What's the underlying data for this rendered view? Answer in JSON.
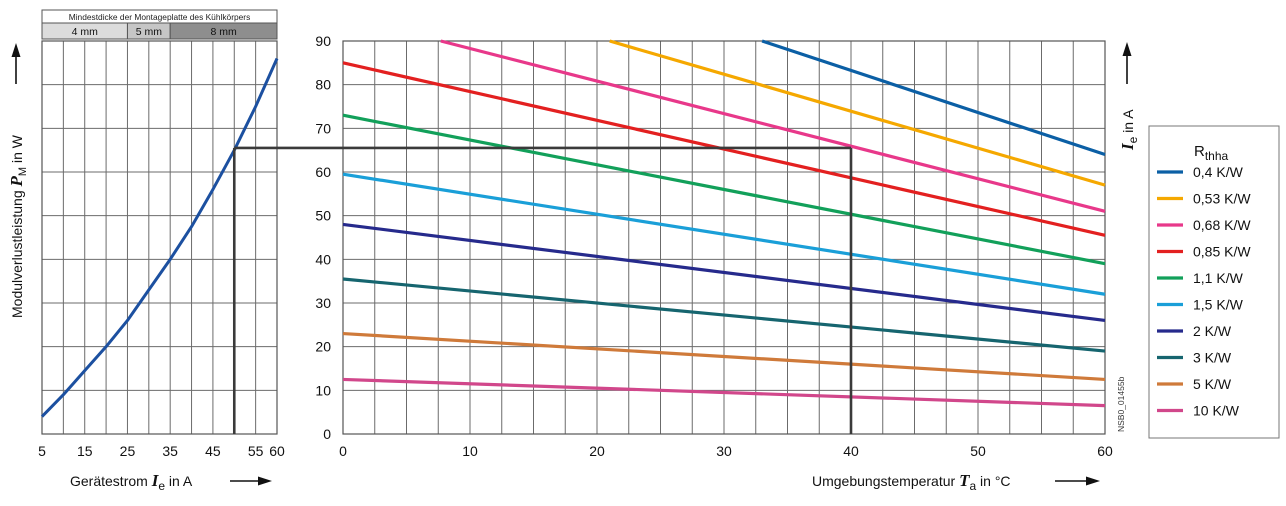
{
  "chart_data": [
    {
      "type": "line",
      "xlabel": "Gerätestrom",
      "xlabel_symbol": "I",
      "xlabel_sub": "e",
      "xlabel_unit": "in A",
      "ylabel": "Modulverlustleistung",
      "ylabel_symbol": "P",
      "ylabel_sub": "M",
      "ylabel_unit": "in W",
      "xticks": [
        5,
        15,
        25,
        35,
        45,
        55,
        60
      ],
      "xlim": [
        5,
        60
      ],
      "ylim": [
        0,
        90
      ],
      "grid": true,
      "header": {
        "title": "Mindestdicke der Montageplatte des Kühlkörpers",
        "segments": [
          {
            "label": "4 mm",
            "from": 5,
            "to": 25
          },
          {
            "label": "5 mm",
            "from": 25,
            "to": 35
          },
          {
            "label": "8 mm",
            "from": 35,
            "to": 60
          }
        ]
      },
      "series": [
        {
          "x": [
            5,
            10,
            15,
            20,
            25,
            30,
            35,
            40,
            45,
            50,
            55,
            60
          ],
          "y": [
            4,
            9,
            14.5,
            20,
            26,
            33,
            40,
            47.5,
            56,
            65,
            75,
            86
          ],
          "color": "#1c50a0"
        }
      ],
      "reference": {
        "x": 50,
        "y": 65.5
      }
    },
    {
      "type": "line",
      "xlabel": "Umgebungstemperatur",
      "xlabel_symbol": "T",
      "xlabel_sub": "a",
      "xlabel_unit": "in °C",
      "ylabel_symbol": "I",
      "ylabel_sub": "e",
      "ylabel_unit": "in A",
      "xticks": [
        0,
        10,
        20,
        30,
        40,
        50,
        60
      ],
      "yticks": [
        0,
        10,
        20,
        30,
        40,
        50,
        60,
        70,
        80,
        90
      ],
      "xlim": [
        0,
        60
      ],
      "ylim": [
        0,
        90
      ],
      "grid": true,
      "legend_title": "R",
      "legend_title_sub": "thha",
      "legend_position": "right",
      "id_text": "NSB0_01455b",
      "series": [
        {
          "name": "0,4 K/W",
          "color": "#0b5fa5",
          "x": [
            33,
            60
          ],
          "y": [
            90,
            64
          ]
        },
        {
          "name": "0,53 K/W",
          "color": "#f5a800",
          "x": [
            21,
            60
          ],
          "y": [
            90,
            57
          ]
        },
        {
          "name": "0,68 K/W",
          "color": "#e8388a",
          "x": [
            7.7,
            60
          ],
          "y": [
            90,
            51
          ]
        },
        {
          "name": "0,85 K/W",
          "color": "#e32020",
          "x": [
            0,
            60
          ],
          "y": [
            85,
            45.5
          ]
        },
        {
          "name": "1,1 K/W",
          "color": "#12a05a",
          "x": [
            0,
            60
          ],
          "y": [
            73,
            39
          ]
        },
        {
          "name": "1,5 K/W",
          "color": "#1a9fd8",
          "x": [
            0,
            60
          ],
          "y": [
            59.5,
            32
          ]
        },
        {
          "name": "2 K/W",
          "color": "#262a8c",
          "x": [
            0,
            60
          ],
          "y": [
            48,
            26
          ]
        },
        {
          "name": "3 K/W",
          "color": "#16656f",
          "x": [
            0,
            60
          ],
          "y": [
            35.5,
            19
          ]
        },
        {
          "name": "5 K/W",
          "color": "#cf7a3a",
          "x": [
            0,
            60
          ],
          "y": [
            23,
            12.5
          ]
        },
        {
          "name": "10 K/W",
          "color": "#d1478b",
          "x": [
            0,
            60
          ],
          "y": [
            12.5,
            6.5
          ]
        }
      ],
      "reference": {
        "x": 40,
        "y": 65.5
      }
    }
  ]
}
